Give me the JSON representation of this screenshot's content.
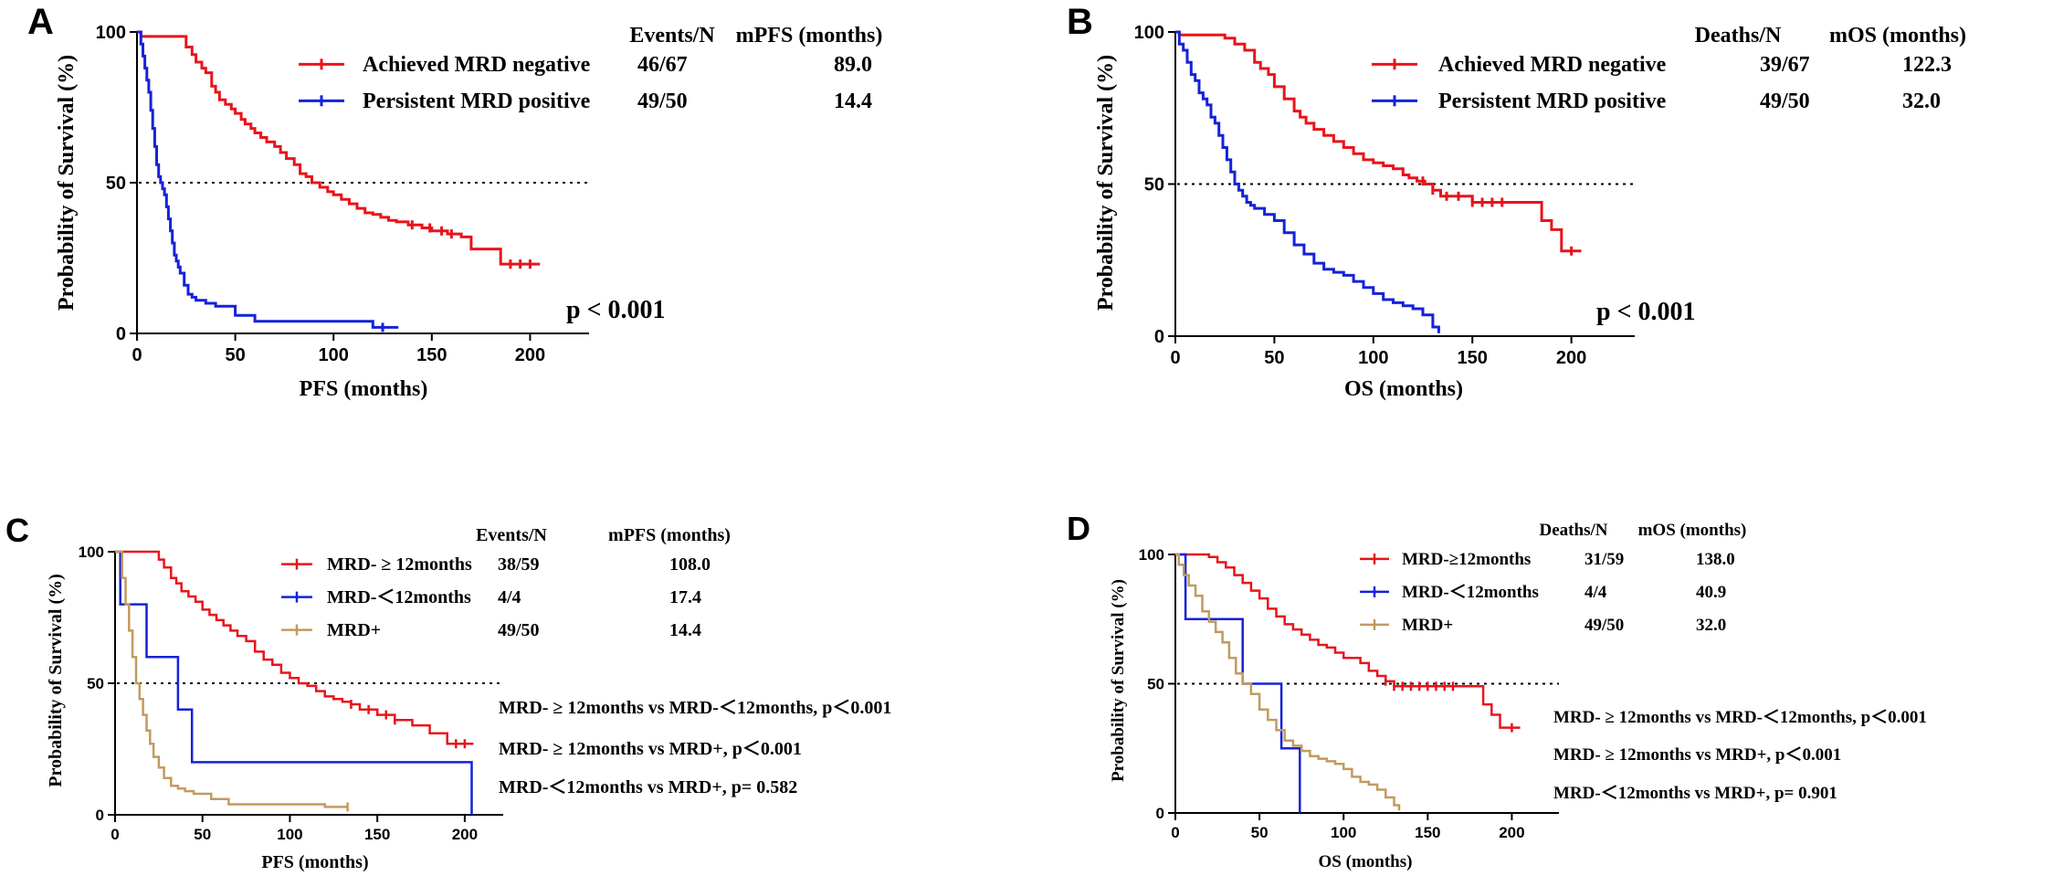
{
  "chart_data": [
    {
      "type": "line",
      "panel": "A",
      "title": "",
      "xlabel": "PFS (months)",
      "ylabel": "Probability of Survival (%)",
      "xlim": [
        0,
        230
      ],
      "ylim": [
        0,
        100
      ],
      "xticks": [
        0,
        50,
        100,
        150,
        200
      ],
      "yticks": [
        0,
        50,
        100
      ],
      "median_line": 50,
      "header": [
        "Events/N",
        "mPFS (months)"
      ],
      "pvalue": "p < 0.001",
      "comparisons": [],
      "series": [
        {
          "name": "Achieved MRD negative",
          "color": "#e8141b",
          "events": "46/67",
          "median": "89.0",
          "censor": [
            140,
            149,
            155,
            160,
            190,
            195,
            200
          ],
          "x": [
            0,
            2,
            22,
            25,
            28,
            30,
            33,
            35,
            38,
            40,
            42,
            45,
            48,
            50,
            53,
            55,
            58,
            60,
            63,
            66,
            70,
            73,
            76,
            80,
            83,
            86,
            89,
            93,
            97,
            100,
            104,
            108,
            112,
            116,
            120,
            124,
            128,
            132,
            138,
            145,
            150,
            158,
            165,
            170,
            178,
            185,
            193,
            205
          ],
          "y": [
            100,
            98.5,
            98.5,
            95,
            92.5,
            90,
            88,
            86.5,
            82,
            80,
            77.5,
            76,
            74.5,
            73,
            71,
            69.5,
            68,
            66.5,
            65,
            63.5,
            62,
            60,
            58,
            56,
            53,
            52,
            50,
            48.5,
            47,
            46,
            44.5,
            43,
            41.5,
            40,
            39.5,
            38.5,
            37.5,
            37,
            36,
            35,
            34,
            33,
            32,
            28,
            28,
            23,
            23,
            23
          ]
        },
        {
          "name": "Persistent MRD positive",
          "color": "#1522d8",
          "events": "49/50",
          "median": "14.4",
          "censor": [
            125
          ],
          "x": [
            0,
            2,
            3,
            4,
            5,
            6,
            7,
            8,
            9,
            10,
            11,
            12,
            13,
            14,
            15,
            16,
            17,
            18,
            19,
            20,
            21,
            22,
            24,
            26,
            28,
            30,
            35,
            40,
            50,
            60,
            70,
            80,
            90,
            100,
            110,
            120,
            133
          ],
          "y": [
            100,
            96,
            92,
            88,
            84,
            80,
            74,
            68,
            62,
            56,
            52,
            50,
            48,
            46,
            42,
            38,
            34,
            30,
            26,
            24,
            22,
            20,
            16,
            13,
            12,
            11,
            10,
            9,
            6,
            4,
            4,
            4,
            4,
            4,
            4,
            2,
            2
          ]
        }
      ]
    },
    {
      "type": "line",
      "panel": "B",
      "title": "",
      "xlabel": "OS (months)",
      "ylabel": "Probability of Survival (%)",
      "xlim": [
        0,
        232
      ],
      "ylim": [
        0,
        100
      ],
      "xticks": [
        0,
        50,
        100,
        150,
        200
      ],
      "yticks": [
        0,
        50,
        100
      ],
      "median_line": 50,
      "header": [
        "Deaths/N",
        "mOS (months)"
      ],
      "pvalue": "p < 0.001",
      "comparisons": [],
      "series": [
        {
          "name": "Achieved MRD negative",
          "color": "#e8141b",
          "events": "39/67",
          "median": "122.3",
          "censor": [
            125,
            130,
            137,
            143,
            150,
            155,
            160,
            165,
            200
          ],
          "x": [
            0,
            2,
            20,
            25,
            30,
            35,
            40,
            43,
            47,
            50,
            55,
            60,
            63,
            66,
            70,
            75,
            80,
            85,
            90,
            95,
            100,
            105,
            110,
            115,
            118,
            122,
            126,
            130,
            134,
            150,
            170,
            185,
            190,
            195,
            205
          ],
          "y": [
            100,
            99,
            99,
            98,
            96,
            94,
            90,
            88,
            86,
            82,
            78,
            74,
            72,
            70,
            68,
            66,
            64,
            62,
            60,
            58,
            57,
            56,
            55,
            53,
            52,
            51,
            50,
            48,
            46,
            44,
            44,
            38,
            35,
            28,
            28
          ]
        },
        {
          "name": "Persistent MRD positive",
          "color": "#1522d8",
          "events": "49/50",
          "median": "32.0",
          "censor": [],
          "x": [
            0,
            2,
            4,
            6,
            8,
            10,
            12,
            14,
            16,
            18,
            20,
            22,
            24,
            26,
            28,
            30,
            32,
            34,
            36,
            38,
            40,
            45,
            50,
            55,
            60,
            65,
            70,
            75,
            80,
            85,
            90,
            95,
            100,
            105,
            110,
            115,
            120,
            125,
            130,
            133
          ],
          "y": [
            100,
            96,
            94,
            90,
            86,
            84,
            80,
            78,
            76,
            72,
            70,
            66,
            62,
            58,
            54,
            50,
            48,
            46,
            44,
            43,
            42,
            40,
            38,
            34,
            30,
            27,
            24,
            22,
            21,
            20,
            18,
            16,
            14,
            12,
            11,
            10,
            9,
            7,
            3,
            1
          ]
        }
      ]
    },
    {
      "type": "line",
      "panel": "C",
      "title": "",
      "xlabel": "PFS (months)",
      "ylabel": "Probability of Survival (%)",
      "xlim": [
        0,
        222
      ],
      "ylim": [
        0,
        100
      ],
      "xticks": [
        0,
        50,
        100,
        150,
        200
      ],
      "yticks": [
        0,
        50,
        100
      ],
      "median_line": 50,
      "header": [
        "Events/N",
        "mPFS (months)"
      ],
      "pvalue": "",
      "comparisons": [
        "MRD- ≥ 12months vs MRD-＜12months, p＜0.001",
        "MRD- ≥ 12months vs MRD+, p＜0.001",
        "MRD-＜12months vs MRD+, p= 0.582"
      ],
      "series": [
        {
          "name": "MRD- ≥ 12months",
          "color": "#e8141b",
          "events": "38/59",
          "median": "108.0",
          "censor": [
            135,
            145,
            155,
            160,
            195,
            200
          ],
          "x": [
            0,
            25,
            28,
            32,
            35,
            38,
            42,
            46,
            50,
            54,
            58,
            62,
            66,
            70,
            75,
            80,
            85,
            90,
            95,
            100,
            105,
            110,
            115,
            120,
            125,
            130,
            135,
            140,
            150,
            160,
            170,
            180,
            190,
            205
          ],
          "y": [
            100,
            97,
            94,
            90,
            88,
            85,
            83,
            81,
            78,
            76,
            74,
            72,
            70,
            68,
            66,
            62,
            59,
            57,
            54,
            52,
            50,
            49,
            47,
            45,
            44,
            43,
            42,
            40,
            38,
            36,
            34,
            31,
            27,
            27
          ]
        },
        {
          "name": "MRD-＜12months",
          "color": "#1522d8",
          "events": "4/4",
          "median": "17.4",
          "censor": [],
          "x": [
            0,
            3,
            18,
            36,
            44,
            204,
            204
          ],
          "y": [
            100,
            80,
            60,
            40,
            20,
            20,
            0
          ]
        },
        {
          "name": "MRD+",
          "color": "#c29a5e",
          "events": "49/50",
          "median": "14.4",
          "censor": [
            133
          ],
          "x": [
            0,
            4,
            6,
            8,
            10,
            12,
            14,
            16,
            18,
            20,
            22,
            25,
            28,
            32,
            36,
            40,
            45,
            55,
            65,
            80,
            100,
            120,
            133
          ],
          "y": [
            100,
            90,
            80,
            70,
            60,
            50,
            44,
            38,
            32,
            27,
            22,
            18,
            14,
            11,
            10,
            9,
            8,
            6,
            4,
            4,
            4,
            3,
            3
          ]
        }
      ]
    },
    {
      "type": "line",
      "panel": "D",
      "title": "",
      "xlabel": "OS (months)",
      "ylabel": "Probability of Survival (%)",
      "xlim": [
        0,
        228
      ],
      "ylim": [
        0,
        100
      ],
      "xticks": [
        0,
        50,
        100,
        150,
        200
      ],
      "yticks": [
        0,
        50,
        100
      ],
      "median_line": 50,
      "header": [
        "Deaths/N",
        "mOS (months)"
      ],
      "pvalue": "",
      "comparisons": [
        "MRD- ≥ 12months vs MRD-＜12months, p＜0.001",
        "MRD- ≥ 12months vs MRD+, p＜0.001",
        "MRD-＜12months vs MRD+, p= 0.901"
      ],
      "series": [
        {
          "name": "MRD-≥12months",
          "color": "#e8141b",
          "events": "31/59",
          "median": "138.0",
          "censor": [
            125,
            130,
            135,
            140,
            145,
            150,
            155,
            160,
            165,
            200
          ],
          "x": [
            0,
            20,
            25,
            30,
            35,
            40,
            45,
            50,
            55,
            60,
            65,
            70,
            75,
            80,
            85,
            90,
            95,
            100,
            110,
            115,
            120,
            125,
            130,
            140,
            150,
            160,
            170,
            183,
            188,
            193,
            205
          ],
          "y": [
            100,
            99,
            97,
            95,
            92,
            89,
            86,
            83,
            79,
            76,
            73,
            71,
            69,
            67,
            65,
            64,
            62,
            60,
            58,
            55,
            53,
            51,
            49,
            49,
            49,
            49,
            49,
            42,
            38,
            33,
            33
          ]
        },
        {
          "name": "MRD-＜12months",
          "color": "#1522d8",
          "events": "4/4",
          "median": "40.9",
          "censor": [],
          "x": [
            0,
            6,
            40,
            63,
            74,
            74
          ],
          "y": [
            100,
            75,
            50,
            25,
            25,
            0
          ]
        },
        {
          "name": "MRD+",
          "color": "#c29a5e",
          "events": "49/50",
          "median": "32.0",
          "censor": [],
          "x": [
            0,
            2,
            5,
            8,
            12,
            16,
            20,
            24,
            28,
            32,
            36,
            40,
            45,
            50,
            55,
            60,
            65,
            70,
            75,
            80,
            85,
            90,
            95,
            100,
            105,
            110,
            115,
            120,
            125,
            130,
            133
          ],
          "y": [
            100,
            96,
            92,
            88,
            84,
            78,
            74,
            70,
            66,
            60,
            54,
            50,
            46,
            40,
            36,
            32,
            28,
            26,
            24,
            22,
            21,
            20,
            19,
            17,
            14,
            12,
            11,
            9,
            6,
            3,
            1
          ]
        }
      ]
    }
  ]
}
